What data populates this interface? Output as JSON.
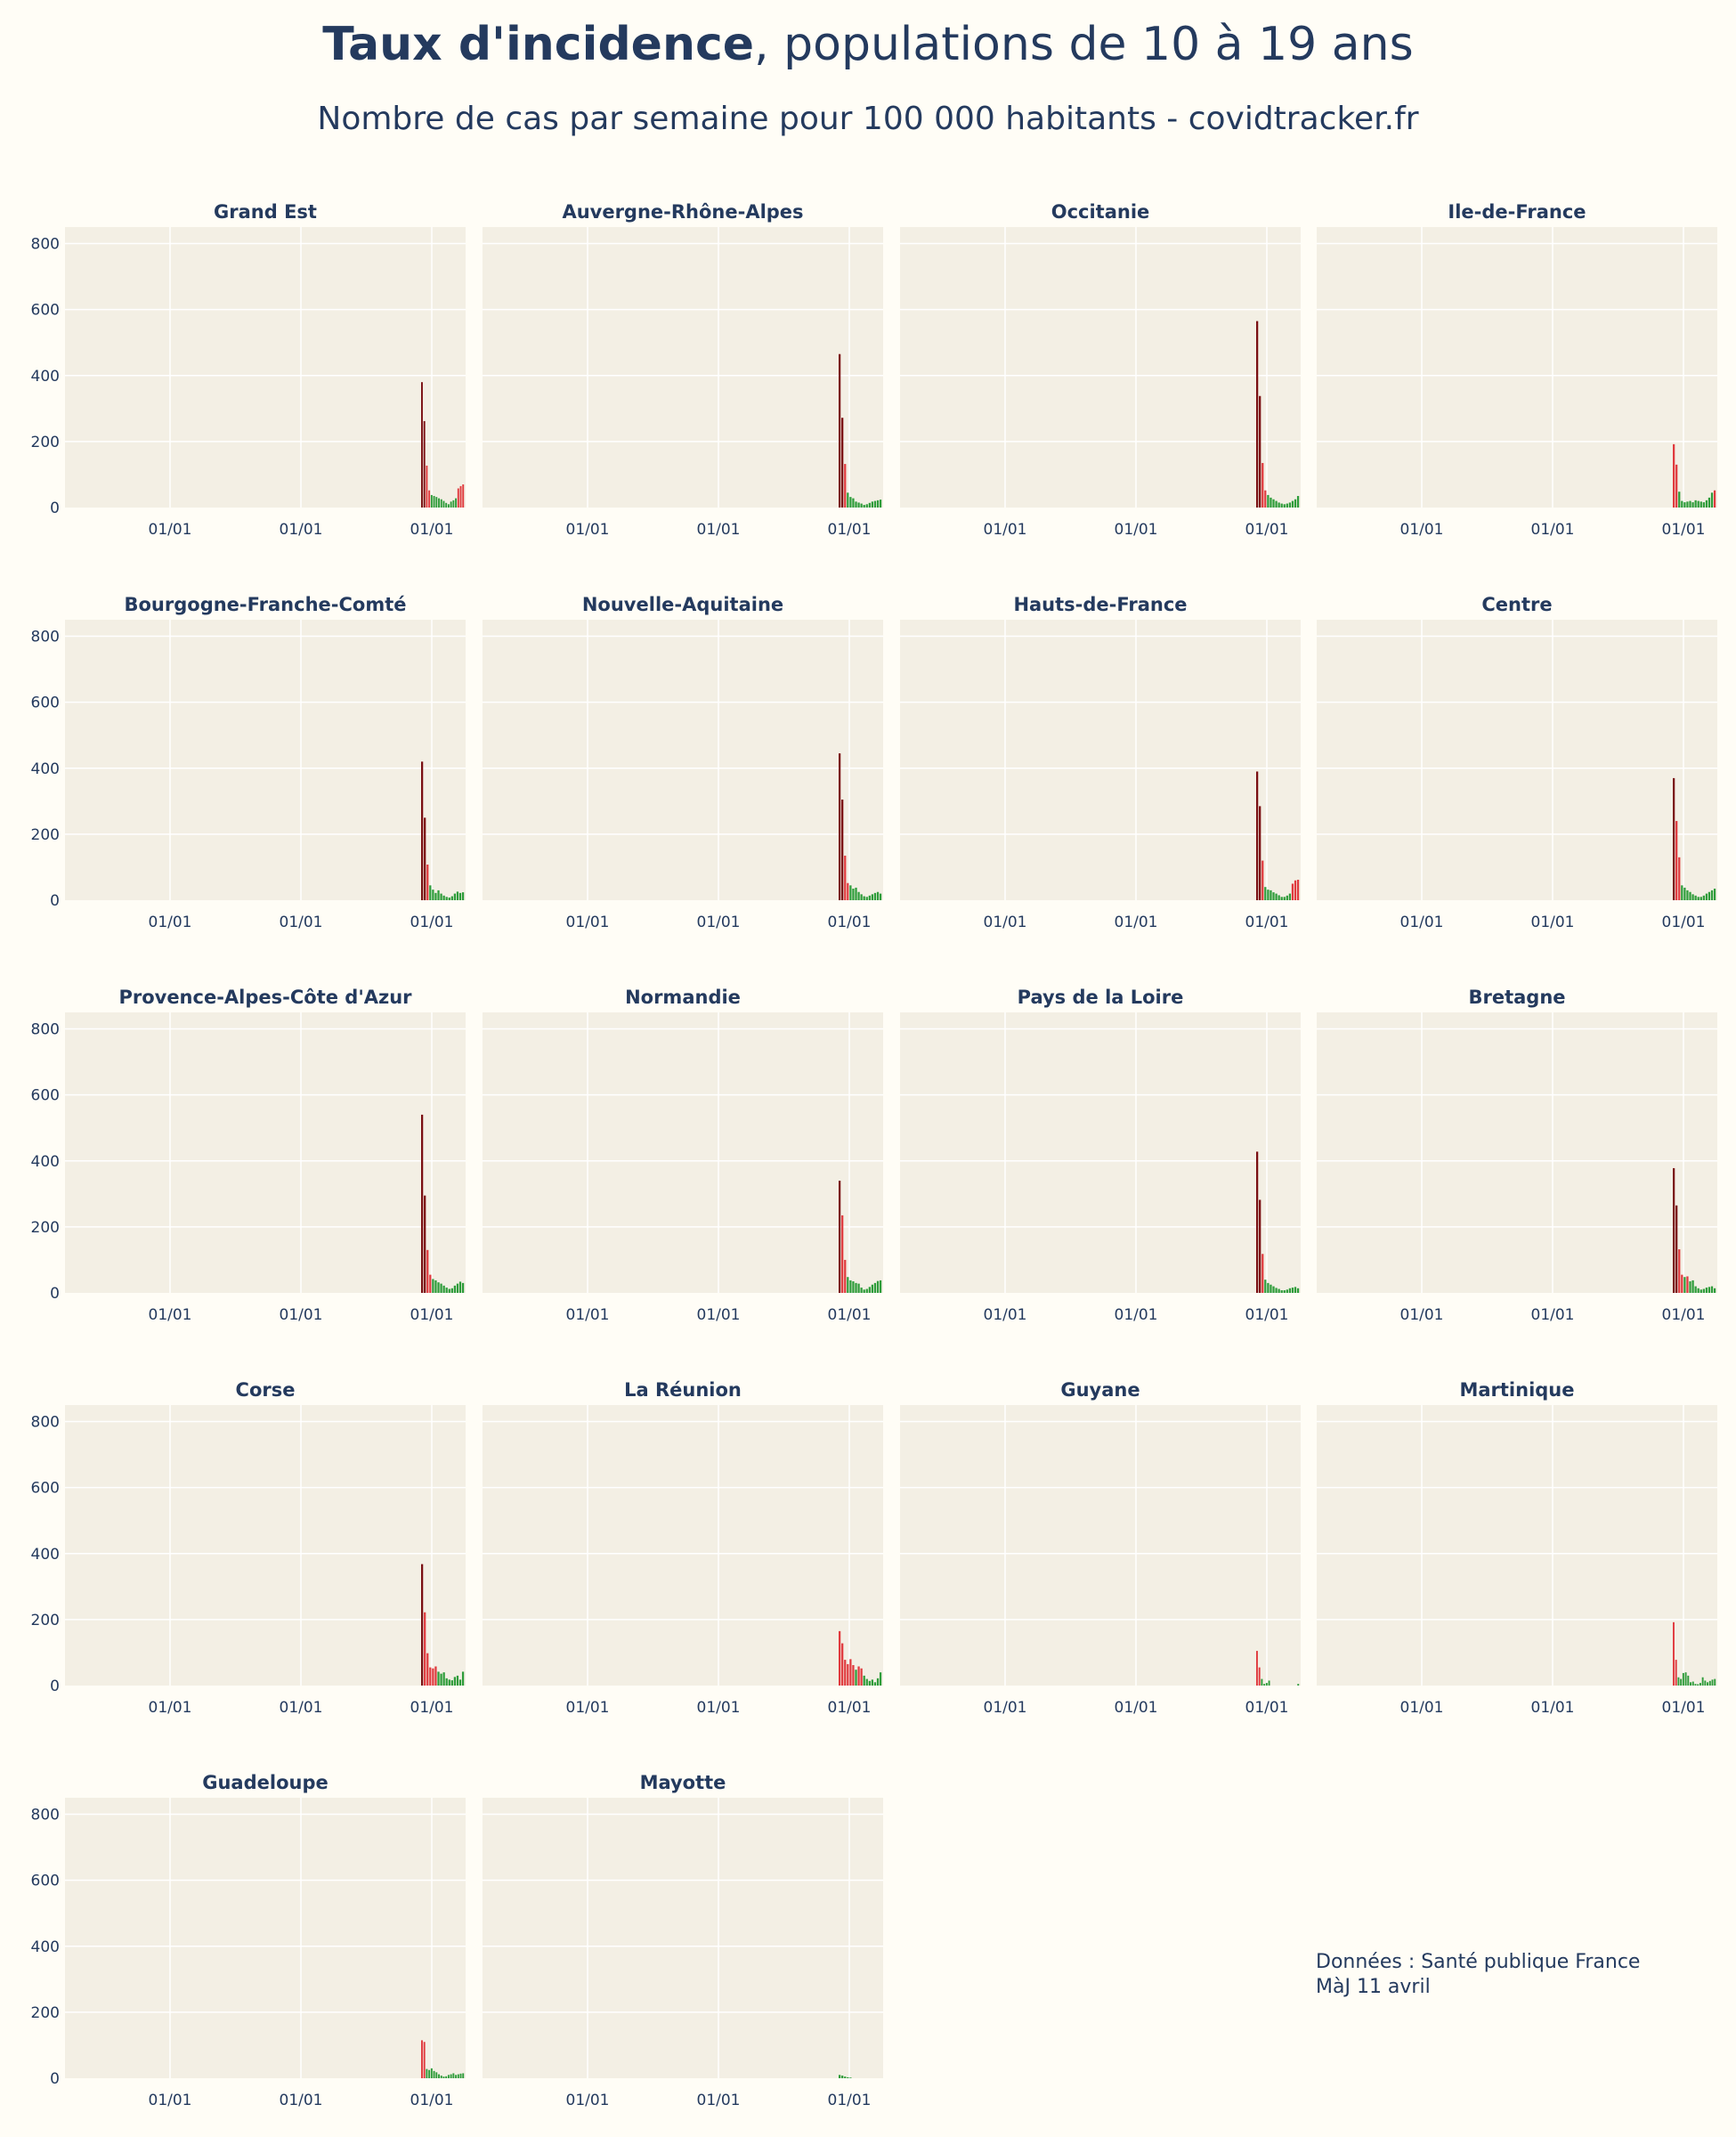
{
  "title": {
    "bold": "Taux d'incidence",
    "rest": ", populations de 10 à 19 ans"
  },
  "subtitle": "Nombre de cas par semaine pour 100 000 habitants - covidtracker.fr",
  "footer": {
    "source": "Données : Santé publique France",
    "updated": "MàJ 11 avril"
  },
  "colors": {
    "background": "#fffdf6",
    "plot_bg": "#f3efe4",
    "grid": "#ffffff",
    "high": "#7a0f12",
    "medium": "#e03a3e",
    "low": "#2e9c3a",
    "text": "#243a5e"
  },
  "chart_data": [
    {
      "type": "bar",
      "title": "Grand Est",
      "ylim": [
        0,
        850
      ],
      "yticks": [
        0,
        200,
        400,
        600,
        800
      ],
      "xtick_labels": [
        "01/01",
        "01/01",
        "01/01"
      ],
      "values": [
        380,
        262,
        127,
        52,
        38,
        35,
        32,
        28,
        25,
        20,
        14,
        10,
        18,
        22,
        28,
        58,
        65,
        70
      ]
    },
    {
      "type": "bar",
      "title": "Auvergne-Rhône-Alpes",
      "ylim": [
        0,
        850
      ],
      "yticks": [
        0,
        200,
        400,
        600,
        800
      ],
      "xtick_labels": [
        "01/01",
        "01/01",
        "01/01"
      ],
      "values": [
        465,
        272,
        132,
        45,
        32,
        28,
        18,
        15,
        12,
        8,
        10,
        14,
        18,
        20,
        22,
        24
      ]
    },
    {
      "type": "bar",
      "title": "Occitanie",
      "ylim": [
        0,
        850
      ],
      "yticks": [
        0,
        200,
        400,
        600,
        800
      ],
      "xtick_labels": [
        "01/01",
        "01/01",
        "01/01"
      ],
      "values": [
        565,
        338,
        135,
        52,
        38,
        30,
        25,
        20,
        15,
        12,
        10,
        12,
        15,
        20,
        25,
        35
      ]
    },
    {
      "type": "bar",
      "title": "Ile-de-France",
      "ylim": [
        0,
        850
      ],
      "yticks": [
        0,
        200,
        400,
        600,
        800
      ],
      "xtick_labels": [
        "01/01",
        "01/01",
        "01/01"
      ],
      "values": [
        192,
        130,
        48,
        20,
        16,
        18,
        20,
        16,
        22,
        20,
        18,
        16,
        22,
        30,
        45,
        52
      ]
    },
    {
      "type": "bar",
      "title": "Bourgogne-Franche-Comté",
      "ylim": [
        0,
        850
      ],
      "yticks": [
        0,
        200,
        400,
        600,
        800
      ],
      "xtick_labels": [
        "01/01",
        "01/01",
        "01/01"
      ],
      "values": [
        420,
        250,
        108,
        45,
        32,
        22,
        30,
        20,
        14,
        10,
        8,
        12,
        20,
        26,
        22,
        24
      ]
    },
    {
      "type": "bar",
      "title": "Nouvelle-Aquitaine",
      "ylim": [
        0,
        850
      ],
      "yticks": [
        0,
        200,
        400,
        600,
        800
      ],
      "xtick_labels": [
        "01/01",
        "01/01",
        "01/01"
      ],
      "values": [
        445,
        305,
        135,
        52,
        45,
        35,
        38,
        25,
        18,
        12,
        10,
        14,
        18,
        22,
        25,
        20
      ]
    },
    {
      "type": "bar",
      "title": "Hauts-de-France",
      "ylim": [
        0,
        850
      ],
      "yticks": [
        0,
        200,
        400,
        600,
        800
      ],
      "xtick_labels": [
        "01/01",
        "01/01",
        "01/01"
      ],
      "values": [
        390,
        285,
        120,
        40,
        32,
        30,
        24,
        20,
        15,
        10,
        10,
        14,
        20,
        50,
        60,
        62
      ]
    },
    {
      "type": "bar",
      "title": "Centre",
      "ylim": [
        0,
        850
      ],
      "yticks": [
        0,
        200,
        400,
        600,
        800
      ],
      "xtick_labels": [
        "01/01",
        "01/01",
        "01/01"
      ],
      "values": [
        370,
        240,
        130,
        45,
        38,
        30,
        25,
        18,
        14,
        10,
        10,
        14,
        20,
        25,
        30,
        35
      ]
    },
    {
      "type": "bar",
      "title": "Provence-Alpes-Côte d'Azur",
      "ylim": [
        0,
        850
      ],
      "yticks": [
        0,
        200,
        400,
        600,
        800
      ],
      "xtick_labels": [
        "01/01",
        "01/01",
        "01/01"
      ],
      "values": [
        540,
        295,
        130,
        55,
        42,
        38,
        32,
        28,
        22,
        16,
        12,
        14,
        22,
        28,
        34,
        30
      ]
    },
    {
      "type": "bar",
      "title": "Normandie",
      "ylim": [
        0,
        850
      ],
      "yticks": [
        0,
        200,
        400,
        600,
        800
      ],
      "xtick_labels": [
        "01/01",
        "01/01",
        "01/01"
      ],
      "values": [
        340,
        235,
        100,
        48,
        38,
        35,
        30,
        28,
        16,
        10,
        12,
        18,
        25,
        30,
        36,
        38
      ]
    },
    {
      "type": "bar",
      "title": "Pays de la Loire",
      "ylim": [
        0,
        850
      ],
      "yticks": [
        0,
        200,
        400,
        600,
        800
      ],
      "xtick_labels": [
        "01/01",
        "01/01",
        "01/01"
      ],
      "values": [
        428,
        282,
        118,
        40,
        30,
        25,
        20,
        15,
        12,
        8,
        8,
        10,
        14,
        16,
        18,
        14
      ]
    },
    {
      "type": "bar",
      "title": "Bretagne",
      "ylim": [
        0,
        850
      ],
      "yticks": [
        0,
        200,
        400,
        600,
        800
      ],
      "xtick_labels": [
        "01/01",
        "01/01",
        "01/01"
      ],
      "values": [
        378,
        265,
        132,
        55,
        48,
        50,
        35,
        38,
        20,
        14,
        10,
        12,
        16,
        18,
        20,
        14
      ]
    },
    {
      "type": "bar",
      "title": "Corse",
      "ylim": [
        0,
        850
      ],
      "yticks": [
        0,
        200,
        400,
        600,
        800
      ],
      "xtick_labels": [
        "01/01",
        "01/01",
        "01/01"
      ],
      "values": [
        368,
        222,
        98,
        55,
        52,
        58,
        42,
        36,
        40,
        22,
        18,
        16,
        26,
        30,
        18,
        42
      ]
    },
    {
      "type": "bar",
      "title": "La Réunion",
      "ylim": [
        0,
        850
      ],
      "yticks": [
        0,
        200,
        400,
        600,
        800
      ],
      "xtick_labels": [
        "01/01",
        "01/01",
        "01/01"
      ],
      "values": [
        165,
        128,
        78,
        65,
        80,
        62,
        48,
        58,
        52,
        30,
        20,
        14,
        18,
        10,
        22,
        40
      ]
    },
    {
      "type": "bar",
      "title": "Guyane",
      "ylim": [
        0,
        850
      ],
      "yticks": [
        0,
        200,
        400,
        600,
        800
      ],
      "xtick_labels": [
        "01/01",
        "01/01",
        "01/01"
      ],
      "values": [
        105,
        55,
        20,
        5,
        8,
        15,
        0,
        0,
        0,
        0,
        0,
        0,
        0,
        0,
        0,
        0,
        0,
        5
      ]
    },
    {
      "type": "bar",
      "title": "Martinique",
      "ylim": [
        0,
        850
      ],
      "yticks": [
        0,
        200,
        400,
        600,
        800
      ],
      "xtick_labels": [
        "01/01",
        "01/01",
        "01/01"
      ],
      "values": [
        192,
        78,
        25,
        20,
        38,
        40,
        30,
        10,
        12,
        5,
        4,
        8,
        25,
        15,
        10,
        14,
        18,
        20
      ]
    },
    {
      "type": "bar",
      "title": "Guadeloupe",
      "ylim": [
        0,
        850
      ],
      "yticks": [
        0,
        200,
        400,
        600,
        800
      ],
      "xtick_labels": [
        "01/01",
        "01/01",
        "01/01"
      ],
      "values": [
        115,
        110,
        28,
        25,
        30,
        22,
        18,
        12,
        8,
        5,
        6,
        10,
        12,
        15,
        10,
        12,
        14,
        15
      ]
    },
    {
      "type": "bar",
      "title": "Mayotte",
      "ylim": [
        0,
        850
      ],
      "yticks": [
        0,
        200,
        400,
        600,
        800
      ],
      "xtick_labels": [
        "01/01",
        "01/01",
        "01/01"
      ],
      "values": [
        10,
        8,
        5,
        3,
        2,
        0,
        0,
        0,
        0,
        0,
        0,
        0,
        0,
        0,
        0,
        0
      ]
    }
  ]
}
